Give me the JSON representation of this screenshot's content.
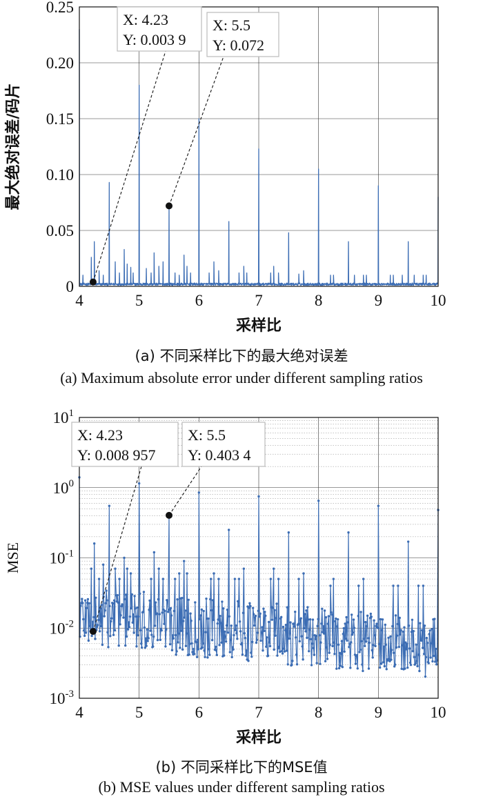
{
  "chart_data": [
    {
      "type": "line",
      "panel": "a",
      "xlabel": "采样比",
      "ylabel": "最大绝对误差/码片",
      "xlim": [
        4,
        10
      ],
      "ylim": [
        0,
        0.25
      ],
      "xticks": [
        "4",
        "5",
        "6",
        "7",
        "8",
        "9",
        "10"
      ],
      "yticks": [
        "0",
        "0.05",
        "0.10",
        "0.15",
        "0.20",
        "0.25"
      ],
      "y_scale": "linear",
      "grid": true,
      "color": "#3c6db4",
      "baseline": 0.002,
      "spikes": [
        {
          "x": 4.0,
          "y": 0.23
        },
        {
          "x": 4.06,
          "y": 0.01
        },
        {
          "x": 4.2,
          "y": 0.026
        },
        {
          "x": 4.25,
          "y": 0.04
        },
        {
          "x": 4.33,
          "y": 0.014
        },
        {
          "x": 4.4,
          "y": 0.01
        },
        {
          "x": 4.5,
          "y": 0.093
        },
        {
          "x": 4.6,
          "y": 0.022
        },
        {
          "x": 4.67,
          "y": 0.012
        },
        {
          "x": 4.75,
          "y": 0.033
        },
        {
          "x": 4.8,
          "y": 0.02
        },
        {
          "x": 4.86,
          "y": 0.017
        },
        {
          "x": 4.9,
          "y": 0.012
        },
        {
          "x": 5.0,
          "y": 0.18
        },
        {
          "x": 5.12,
          "y": 0.016
        },
        {
          "x": 5.2,
          "y": 0.012
        },
        {
          "x": 5.25,
          "y": 0.03
        },
        {
          "x": 5.33,
          "y": 0.018
        },
        {
          "x": 5.4,
          "y": 0.022
        },
        {
          "x": 5.5,
          "y": 0.072
        },
        {
          "x": 5.6,
          "y": 0.012
        },
        {
          "x": 5.67,
          "y": 0.01
        },
        {
          "x": 5.75,
          "y": 0.028
        },
        {
          "x": 5.8,
          "y": 0.018
        },
        {
          "x": 5.86,
          "y": 0.012
        },
        {
          "x": 6.0,
          "y": 0.15
        },
        {
          "x": 6.17,
          "y": 0.012
        },
        {
          "x": 6.25,
          "y": 0.022
        },
        {
          "x": 6.33,
          "y": 0.014
        },
        {
          "x": 6.5,
          "y": 0.058
        },
        {
          "x": 6.67,
          "y": 0.012
        },
        {
          "x": 6.75,
          "y": 0.018
        },
        {
          "x": 6.8,
          "y": 0.012
        },
        {
          "x": 7.0,
          "y": 0.123
        },
        {
          "x": 7.2,
          "y": 0.012
        },
        {
          "x": 7.25,
          "y": 0.018
        },
        {
          "x": 7.33,
          "y": 0.012
        },
        {
          "x": 7.5,
          "y": 0.048
        },
        {
          "x": 7.67,
          "y": 0.011
        },
        {
          "x": 7.75,
          "y": 0.014
        },
        {
          "x": 8.0,
          "y": 0.105
        },
        {
          "x": 8.2,
          "y": 0.01
        },
        {
          "x": 8.25,
          "y": 0.01
        },
        {
          "x": 8.5,
          "y": 0.04
        },
        {
          "x": 8.6,
          "y": 0.01
        },
        {
          "x": 8.75,
          "y": 0.01
        },
        {
          "x": 8.8,
          "y": 0.01
        },
        {
          "x": 9.0,
          "y": 0.09
        },
        {
          "x": 9.2,
          "y": 0.01
        },
        {
          "x": 9.25,
          "y": 0.01
        },
        {
          "x": 9.4,
          "y": 0.01
        },
        {
          "x": 9.5,
          "y": 0.04
        },
        {
          "x": 9.6,
          "y": 0.01
        },
        {
          "x": 9.75,
          "y": 0.01
        },
        {
          "x": 9.8,
          "y": 0.01
        },
        {
          "x": 10.0,
          "y": 0.08
        }
      ],
      "annotations": [
        {
          "x": 4.23,
          "y": 0.0039,
          "x_text": "X: 4.23",
          "y_text": "Y: 0.003 9"
        },
        {
          "x": 5.5,
          "y": 0.072,
          "x_text": "X: 5.5",
          "y_text": "Y: 0.072"
        }
      ],
      "caption_zh": "(a) 不同采样比下的最大绝对误差",
      "caption_en": "(a) Maximum absolute error under different sampling ratios"
    },
    {
      "type": "line",
      "panel": "b",
      "xlabel": "采样比",
      "ylabel": "MSE",
      "xlim": [
        4,
        10
      ],
      "ylim": [
        0.001,
        10
      ],
      "xticks": [
        "4",
        "5",
        "6",
        "7",
        "8",
        "9",
        "10"
      ],
      "yticks": [
        {
          "base": "10",
          "exp": "-3"
        },
        {
          "base": "10",
          "exp": "-2"
        },
        {
          "base": "10",
          "exp": "-1"
        },
        {
          "base": "10",
          "exp": "0"
        },
        {
          "base": "10",
          "exp": "1"
        }
      ],
      "y_scale": "log",
      "grid": true,
      "minor_grid": true,
      "color": "#3c6db4",
      "markers": true,
      "noise_start": 0.015,
      "noise_end": 0.005,
      "spikes": [
        {
          "x": 4.0,
          "y": 1.4
        },
        {
          "x": 4.2,
          "y": 0.07
        },
        {
          "x": 4.25,
          "y": 0.16
        },
        {
          "x": 4.33,
          "y": 0.05
        },
        {
          "x": 4.4,
          "y": 0.08
        },
        {
          "x": 4.5,
          "y": 0.55
        },
        {
          "x": 4.6,
          "y": 0.07
        },
        {
          "x": 4.67,
          "y": 0.05
        },
        {
          "x": 4.75,
          "y": 0.1
        },
        {
          "x": 4.8,
          "y": 0.07
        },
        {
          "x": 4.86,
          "y": 0.06
        },
        {
          "x": 5.0,
          "y": 1.15
        },
        {
          "x": 5.2,
          "y": 0.05
        },
        {
          "x": 5.25,
          "y": 0.12
        },
        {
          "x": 5.33,
          "y": 0.07
        },
        {
          "x": 5.4,
          "y": 0.05
        },
        {
          "x": 5.5,
          "y": 0.4034
        },
        {
          "x": 5.6,
          "y": 0.05
        },
        {
          "x": 5.67,
          "y": 0.06
        },
        {
          "x": 5.75,
          "y": 0.09
        },
        {
          "x": 5.8,
          "y": 0.06
        },
        {
          "x": 6.0,
          "y": 0.85
        },
        {
          "x": 6.2,
          "y": 0.05
        },
        {
          "x": 6.25,
          "y": 0.06
        },
        {
          "x": 6.33,
          "y": 0.05
        },
        {
          "x": 6.5,
          "y": 0.25
        },
        {
          "x": 6.6,
          "y": 0.05
        },
        {
          "x": 6.67,
          "y": 0.05
        },
        {
          "x": 6.75,
          "y": 0.07
        },
        {
          "x": 7.0,
          "y": 0.75
        },
        {
          "x": 7.2,
          "y": 0.05
        },
        {
          "x": 7.25,
          "y": 0.07
        },
        {
          "x": 7.33,
          "y": 0.05
        },
        {
          "x": 7.5,
          "y": 0.23
        },
        {
          "x": 7.67,
          "y": 0.05
        },
        {
          "x": 7.75,
          "y": 0.06
        },
        {
          "x": 8.0,
          "y": 0.65
        },
        {
          "x": 8.2,
          "y": 0.04
        },
        {
          "x": 8.25,
          "y": 0.05
        },
        {
          "x": 8.5,
          "y": 0.23
        },
        {
          "x": 8.67,
          "y": 0.04
        },
        {
          "x": 8.75,
          "y": 0.05
        },
        {
          "x": 9.0,
          "y": 0.55
        },
        {
          "x": 9.25,
          "y": 0.04
        },
        {
          "x": 9.33,
          "y": 0.04
        },
        {
          "x": 9.5,
          "y": 0.17
        },
        {
          "x": 9.67,
          "y": 0.04
        },
        {
          "x": 9.75,
          "y": 0.04
        },
        {
          "x": 10.0,
          "y": 0.48
        }
      ],
      "annotations": [
        {
          "x": 4.23,
          "y": 0.008957,
          "x_text": "X: 4.23",
          "y_text": "Y: 0.008 957"
        },
        {
          "x": 5.5,
          "y": 0.4034,
          "x_text": "X: 5.5",
          "y_text": "Y: 0.403 4"
        }
      ],
      "caption_zh": "(b) 不同采样比下的MSE值",
      "caption_en": "(b) MSE values under different sampling ratios"
    }
  ]
}
